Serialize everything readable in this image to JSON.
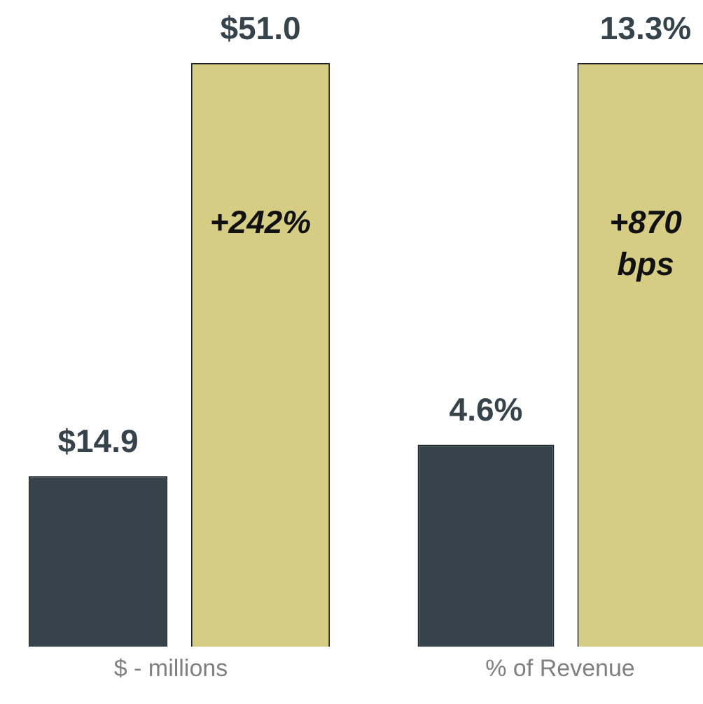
{
  "chart_data": [
    {
      "type": "bar",
      "xlabel": "$ - millions",
      "categories": [
        null,
        null
      ],
      "values": [
        14.9,
        51.0
      ],
      "colors": [
        "#37434b",
        "#d6cd85"
      ],
      "value_labels": [
        "$14.9",
        "$51.0"
      ],
      "annotations": [
        "+242%"
      ]
    },
    {
      "type": "bar",
      "xlabel": "% of Revenue",
      "categories": [
        null,
        null
      ],
      "values": [
        4.6,
        13.3
      ],
      "colors": [
        "#37434b",
        "#d6cd85"
      ],
      "value_labels": [
        "4.6%",
        "13.3%"
      ],
      "annotations": [
        "+870 bps"
      ]
    }
  ]
}
